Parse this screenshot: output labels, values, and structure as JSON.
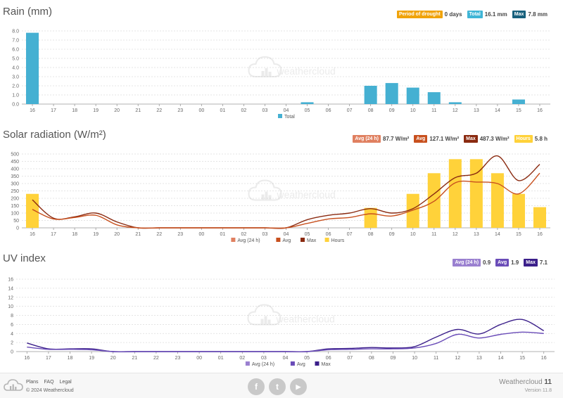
{
  "rain": {
    "title": "Rain (mm)",
    "badges": [
      {
        "label": "Period of drought",
        "value": "0 days",
        "color": "#f0a30a"
      },
      {
        "label": "Total",
        "value": "16.1 mm",
        "color": "#3fb5d6"
      },
      {
        "label": "Max",
        "value": "7.8 mm",
        "color": "#17607c"
      }
    ],
    "legend": [
      {
        "label": "Total",
        "color": "#45b0d2"
      }
    ]
  },
  "solar": {
    "title": "Solar radiation (W/m²)",
    "badges": [
      {
        "label": "Avg (24 h)",
        "value": "87.7 W/m²",
        "color": "#e08060"
      },
      {
        "label": "Avg",
        "value": "127.1 W/m²",
        "color": "#c8501e"
      },
      {
        "label": "Max",
        "value": "487.3 W/m²",
        "color": "#8a2a10"
      },
      {
        "label": "Hours",
        "value": "5.8 h",
        "color": "#ffd23a"
      }
    ],
    "legend": [
      {
        "label": "Avg (24 h)",
        "color": "#e08060"
      },
      {
        "label": "Avg",
        "color": "#c8501e"
      },
      {
        "label": "Max",
        "color": "#8a2a10"
      },
      {
        "label": "Hours",
        "color": "#ffd23a"
      }
    ]
  },
  "uv": {
    "title": "UV index",
    "badges": [
      {
        "label": "Avg (24 h)",
        "value": "0.9",
        "color": "#9a80d0"
      },
      {
        "label": "Avg",
        "value": "1.9",
        "color": "#6a4cb8"
      },
      {
        "label": "Max",
        "value": "7.1",
        "color": "#3b1f8a"
      }
    ],
    "legend": [
      {
        "label": "Avg (24 h)",
        "color": "#9a80d0"
      },
      {
        "label": "Avg",
        "color": "#6a4cb8"
      },
      {
        "label": "Max",
        "color": "#3b1f8a"
      }
    ]
  },
  "watermark": "weathercloud",
  "footer": {
    "links": [
      "Plans",
      "FAQ",
      "Legal"
    ],
    "copyright": "© 2024 Weathercloud",
    "brand_name": "Weathercloud",
    "brand_num": "11",
    "version": "Version 11.8",
    "social": [
      "f",
      "t",
      "▶"
    ]
  },
  "chart_data": [
    {
      "type": "bar",
      "title": "Rain (mm)",
      "categories": [
        "16",
        "17",
        "18",
        "19",
        "20",
        "21",
        "22",
        "23",
        "00",
        "01",
        "02",
        "03",
        "04",
        "05",
        "06",
        "07",
        "08",
        "09",
        "10",
        "11",
        "12",
        "13",
        "14",
        "15",
        "16"
      ],
      "series": [
        {
          "name": "Total",
          "color": "#45b0d2",
          "values": [
            7.8,
            0,
            0,
            0,
            0,
            0,
            0,
            0,
            0,
            0,
            0,
            0,
            0,
            0.2,
            0,
            0,
            2.0,
            2.3,
            1.8,
            1.3,
            0.2,
            0,
            0,
            0.5,
            0
          ]
        }
      ],
      "ylim": [
        0,
        8
      ],
      "yticks": [
        "0.0",
        "1.0",
        "2.0",
        "3.0",
        "4.0",
        "5.0",
        "6.0",
        "7.0",
        "8.0"
      ]
    },
    {
      "type": "bar+line",
      "title": "Solar radiation (W/m²)",
      "categories": [
        "16",
        "17",
        "18",
        "19",
        "20",
        "21",
        "22",
        "23",
        "00",
        "01",
        "02",
        "03",
        "04",
        "05",
        "06",
        "07",
        "08",
        "09",
        "10",
        "11",
        "12",
        "13",
        "14",
        "15",
        "16"
      ],
      "series": [
        {
          "name": "Hours",
          "kind": "bar",
          "color": "#ffd23a",
          "values": [
            230,
            0,
            0,
            0,
            0,
            0,
            0,
            0,
            0,
            0,
            0,
            0,
            0,
            0,
            0,
            0,
            135,
            0,
            230,
            370,
            465,
            465,
            370,
            230,
            140
          ]
        },
        {
          "name": "Max",
          "kind": "line",
          "color": "#8a2a10",
          "values": [
            190,
            65,
            75,
            100,
            40,
            0,
            0,
            0,
            0,
            0,
            0,
            0,
            0,
            55,
            85,
            100,
            130,
            100,
            130,
            230,
            340,
            370,
            487,
            320,
            430
          ]
        },
        {
          "name": "Avg",
          "kind": "line",
          "color": "#c8501e",
          "values": [
            125,
            60,
            70,
            85,
            20,
            0,
            0,
            0,
            0,
            0,
            0,
            0,
            0,
            30,
            60,
            70,
            95,
            80,
            120,
            180,
            305,
            310,
            300,
            230,
            370
          ]
        }
      ],
      "ylim": [
        0,
        500
      ],
      "yticks": [
        "0",
        "50",
        "100",
        "150",
        "200",
        "250",
        "300",
        "350",
        "400",
        "450",
        "500"
      ]
    },
    {
      "type": "line",
      "title": "UV index",
      "categories": [
        "16",
        "17",
        "18",
        "19",
        "20",
        "21",
        "22",
        "23",
        "00",
        "01",
        "02",
        "03",
        "04",
        "05",
        "06",
        "07",
        "08",
        "09",
        "10",
        "11",
        "12",
        "13",
        "14",
        "15",
        "16"
      ],
      "series": [
        {
          "name": "Max",
          "color": "#3b1f8a",
          "values": [
            1.9,
            0.6,
            0.6,
            0.6,
            0,
            0,
            0,
            0,
            0,
            0,
            0,
            0,
            0,
            0,
            0.6,
            0.7,
            0.9,
            0.8,
            1.1,
            3.2,
            4.9,
            3.9,
            6.0,
            7.1,
            4.6
          ]
        },
        {
          "name": "Avg",
          "color": "#6a4cb8",
          "values": [
            1.0,
            0.5,
            0.5,
            0.4,
            0,
            0,
            0,
            0,
            0,
            0,
            0,
            0,
            0,
            0,
            0.4,
            0.5,
            0.6,
            0.6,
            0.8,
            1.8,
            3.8,
            3.0,
            3.8,
            4.3,
            4.0
          ]
        }
      ],
      "ylim": [
        0,
        16
      ],
      "yticks": [
        "0",
        "2",
        "4",
        "6",
        "8",
        "10",
        "12",
        "14",
        "16"
      ]
    }
  ]
}
